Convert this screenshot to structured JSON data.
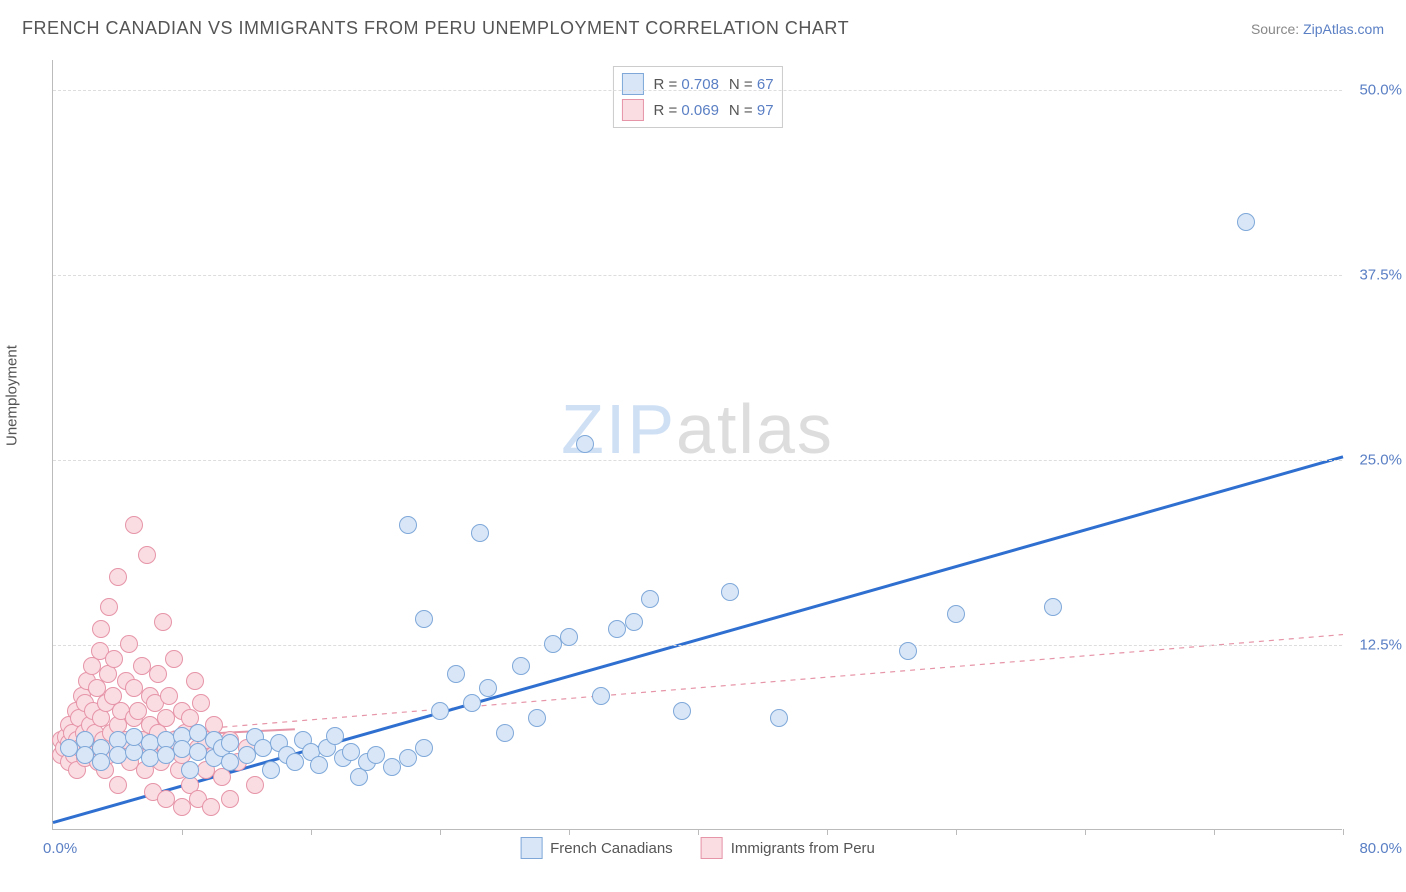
{
  "header": {
    "title": "FRENCH CANADIAN VS IMMIGRANTS FROM PERU UNEMPLOYMENT CORRELATION CHART",
    "source_prefix": "Source: ",
    "source_link": "ZipAtlas.com"
  },
  "chart": {
    "type": "scatter",
    "ylabel": "Unemployment",
    "xlim": [
      0,
      80
    ],
    "ylim": [
      0,
      52
    ],
    "x_min_label": "0.0%",
    "x_max_label": "80.0%",
    "y_ticks": [
      {
        "v": 12.5,
        "label": "12.5%"
      },
      {
        "v": 25.0,
        "label": "25.0%"
      },
      {
        "v": 37.5,
        "label": "37.5%"
      },
      {
        "v": 50.0,
        "label": "50.0%"
      }
    ],
    "x_tick_positions": [
      8,
      16,
      24,
      32,
      40,
      48,
      56,
      64,
      72,
      80
    ],
    "background_color": "#ffffff",
    "grid_color": "#dddddd",
    "marker_radius": 9,
    "marker_stroke_width": 1.5,
    "watermark": {
      "zip": "ZIP",
      "atlas": "atlas"
    },
    "series": [
      {
        "id": "french_canadians",
        "label": "French Canadians",
        "fill": "#d8e6f7",
        "stroke": "#7fa8d9",
        "line_color": "#2f6fd0",
        "line_width": 3,
        "line_dash": "none",
        "r_value": "0.708",
        "n_value": "67",
        "trend": {
          "x1": 0,
          "y1": 0.5,
          "x2": 80,
          "y2": 25.2
        },
        "points": [
          [
            1,
            5.5
          ],
          [
            2,
            6
          ],
          [
            2,
            5
          ],
          [
            3,
            5.5
          ],
          [
            3,
            4.5
          ],
          [
            4,
            6
          ],
          [
            4,
            5
          ],
          [
            5,
            5.2
          ],
          [
            5,
            6.2
          ],
          [
            6,
            5.8
          ],
          [
            6,
            4.8
          ],
          [
            7,
            6
          ],
          [
            7,
            5
          ],
          [
            8,
            6.3
          ],
          [
            8,
            5.4
          ],
          [
            8.5,
            4
          ],
          [
            9,
            6.5
          ],
          [
            9,
            5.2
          ],
          [
            10,
            4.8
          ],
          [
            10,
            6
          ],
          [
            10.5,
            5.5
          ],
          [
            11,
            4.5
          ],
          [
            11,
            5.8
          ],
          [
            12,
            5
          ],
          [
            12.5,
            6.2
          ],
          [
            13,
            5.5
          ],
          [
            13.5,
            4
          ],
          [
            14,
            5.8
          ],
          [
            14.5,
            5
          ],
          [
            15,
            4.5
          ],
          [
            15.5,
            6
          ],
          [
            16,
            5.2
          ],
          [
            16.5,
            4.3
          ],
          [
            17,
            5.5
          ],
          [
            17.5,
            6.3
          ],
          [
            18,
            4.8
          ],
          [
            18.5,
            5.2
          ],
          [
            19,
            3.5
          ],
          [
            19.5,
            4.5
          ],
          [
            20,
            5
          ],
          [
            21,
            4.2
          ],
          [
            22,
            4.8
          ],
          [
            23,
            5.5
          ],
          [
            22,
            20.5
          ],
          [
            23,
            14.2
          ],
          [
            24,
            8
          ],
          [
            25,
            10.5
          ],
          [
            26,
            8.5
          ],
          [
            26.5,
            20
          ],
          [
            27,
            9.5
          ],
          [
            28,
            6.5
          ],
          [
            29,
            11
          ],
          [
            30,
            7.5
          ],
          [
            31,
            12.5
          ],
          [
            32,
            13
          ],
          [
            33,
            26
          ],
          [
            34,
            9
          ],
          [
            35,
            13.5
          ],
          [
            36,
            14
          ],
          [
            37,
            15.5
          ],
          [
            39,
            8
          ],
          [
            42,
            16
          ],
          [
            45,
            7.5
          ],
          [
            53,
            12
          ],
          [
            56,
            14.5
          ],
          [
            62,
            15
          ],
          [
            74,
            41
          ]
        ]
      },
      {
        "id": "immigrants_peru",
        "label": "Immigrants from Peru",
        "fill": "#fadce3",
        "stroke": "#e695a8",
        "line_color": "#e695a8",
        "line_width": 2,
        "line_dash": "5,5",
        "r_value": "0.069",
        "n_value": "97",
        "trend_solid": {
          "x1": 0,
          "y1": 6,
          "x2": 15,
          "y2": 6.8
        },
        "trend": {
          "x1": 0,
          "y1": 6,
          "x2": 80,
          "y2": 13.2
        },
        "points": [
          [
            0.5,
            5
          ],
          [
            0.5,
            6
          ],
          [
            0.7,
            5.5
          ],
          [
            0.8,
            6.2
          ],
          [
            1,
            4.5
          ],
          [
            1,
            5.8
          ],
          [
            1,
            7
          ],
          [
            1.2,
            6.5
          ],
          [
            1.3,
            5
          ],
          [
            1.4,
            8
          ],
          [
            1.5,
            4
          ],
          [
            1.5,
            6
          ],
          [
            1.6,
            7.5
          ],
          [
            1.7,
            5.5
          ],
          [
            1.8,
            9
          ],
          [
            1.9,
            6.5
          ],
          [
            2,
            4.8
          ],
          [
            2,
            6
          ],
          [
            2,
            8.5
          ],
          [
            2.1,
            10
          ],
          [
            2.2,
            5.5
          ],
          [
            2.3,
            7
          ],
          [
            2.4,
            11
          ],
          [
            2.5,
            5
          ],
          [
            2.5,
            8
          ],
          [
            2.6,
            6.5
          ],
          [
            2.7,
            9.5
          ],
          [
            2.8,
            4.5
          ],
          [
            2.9,
            12
          ],
          [
            3,
            5.5
          ],
          [
            3,
            7.5
          ],
          [
            3,
            13.5
          ],
          [
            3.1,
            6
          ],
          [
            3.2,
            4
          ],
          [
            3.3,
            8.5
          ],
          [
            3.4,
            10.5
          ],
          [
            3.5,
            5
          ],
          [
            3.5,
            15
          ],
          [
            3.6,
            6.5
          ],
          [
            3.7,
            9
          ],
          [
            3.8,
            11.5
          ],
          [
            3.9,
            5.5
          ],
          [
            4,
            7
          ],
          [
            4,
            17
          ],
          [
            4,
            3
          ],
          [
            4.2,
            8
          ],
          [
            4.3,
            5
          ],
          [
            4.5,
            10
          ],
          [
            4.5,
            6
          ],
          [
            4.7,
            12.5
          ],
          [
            4.8,
            4.5
          ],
          [
            5,
            7.5
          ],
          [
            5,
            9.5
          ],
          [
            5,
            20.5
          ],
          [
            5.2,
            5.5
          ],
          [
            5.3,
            8
          ],
          [
            5.5,
            6
          ],
          [
            5.5,
            11
          ],
          [
            5.7,
            4
          ],
          [
            5.8,
            18.5
          ],
          [
            6,
            7
          ],
          [
            6,
            9
          ],
          [
            6,
            5
          ],
          [
            6.2,
            2.5
          ],
          [
            6.3,
            8.5
          ],
          [
            6.5,
            6.5
          ],
          [
            6.5,
            10.5
          ],
          [
            6.7,
            4.5
          ],
          [
            6.8,
            14
          ],
          [
            7,
            7.5
          ],
          [
            7,
            5.5
          ],
          [
            7,
            2
          ],
          [
            7.2,
            9
          ],
          [
            7.5,
            6
          ],
          [
            7.5,
            11.5
          ],
          [
            7.8,
            4
          ],
          [
            8,
            8
          ],
          [
            8,
            5
          ],
          [
            8,
            1.5
          ],
          [
            8.2,
            6.5
          ],
          [
            8.5,
            7.5
          ],
          [
            8.5,
            3
          ],
          [
            8.8,
            10
          ],
          [
            9,
            5.5
          ],
          [
            9,
            2
          ],
          [
            9.2,
            8.5
          ],
          [
            9.5,
            6
          ],
          [
            9.5,
            4
          ],
          [
            9.8,
            1.5
          ],
          [
            10,
            7
          ],
          [
            10,
            5
          ],
          [
            10.5,
            3.5
          ],
          [
            11,
            6
          ],
          [
            11,
            2
          ],
          [
            11.5,
            4.5
          ],
          [
            12,
            5.5
          ],
          [
            12.5,
            3
          ]
        ]
      }
    ]
  }
}
